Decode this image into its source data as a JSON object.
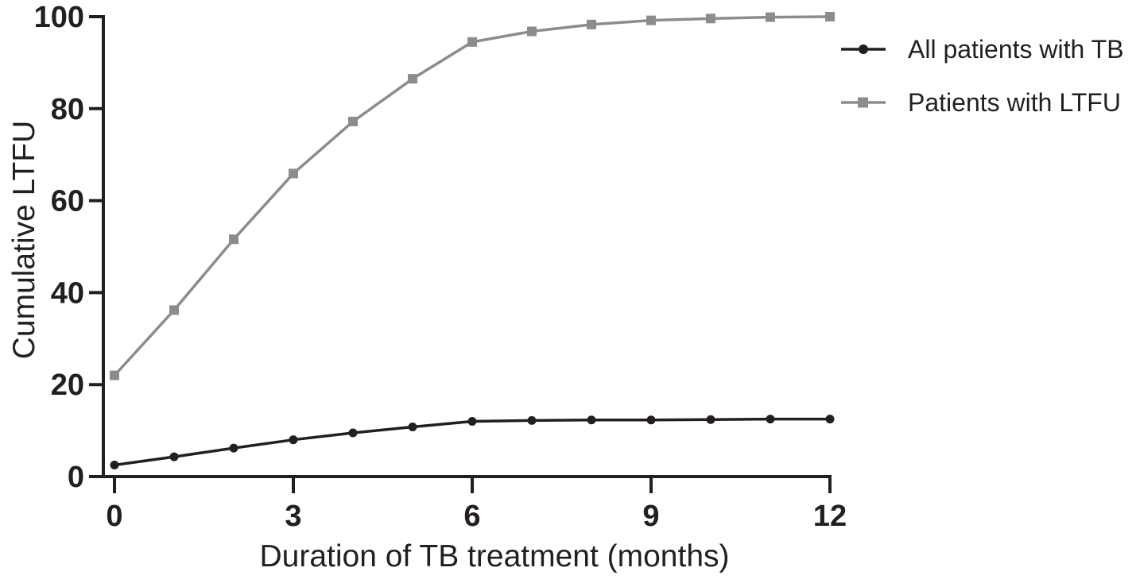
{
  "colors": {
    "foreground": "#231f20",
    "series_black": "#231f20",
    "series_gray": "#8c8c8c",
    "background": "#ffffff"
  },
  "chart_data": {
    "type": "line",
    "title": "",
    "xlabel": "Duration of TB treatment (months)",
    "ylabel": "Cumulative LTFU",
    "x": [
      0,
      1,
      2,
      3,
      4,
      5,
      6,
      7,
      8,
      9,
      10,
      11,
      12
    ],
    "series": [
      {
        "name": "All patients with TB",
        "marker": "circle",
        "color": "#231f20",
        "values": [
          2.5,
          4.3,
          6.2,
          8.0,
          9.5,
          10.8,
          12.0,
          12.2,
          12.3,
          12.3,
          12.4,
          12.5,
          12.5
        ]
      },
      {
        "name": "Patients with LTFU",
        "marker": "square",
        "color": "#8c8c8c",
        "values": [
          22.0,
          36.2,
          51.6,
          65.9,
          77.2,
          86.5,
          94.5,
          96.8,
          98.3,
          99.2,
          99.6,
          99.9,
          100.0
        ]
      }
    ],
    "x_ticks": [
      0,
      3,
      6,
      9,
      12
    ],
    "y_ticks": [
      0,
      20,
      40,
      60,
      80,
      100
    ],
    "xlim": [
      0,
      12
    ],
    "ylim": [
      0,
      100
    ],
    "grid": false,
    "legend_position": "top-right"
  }
}
